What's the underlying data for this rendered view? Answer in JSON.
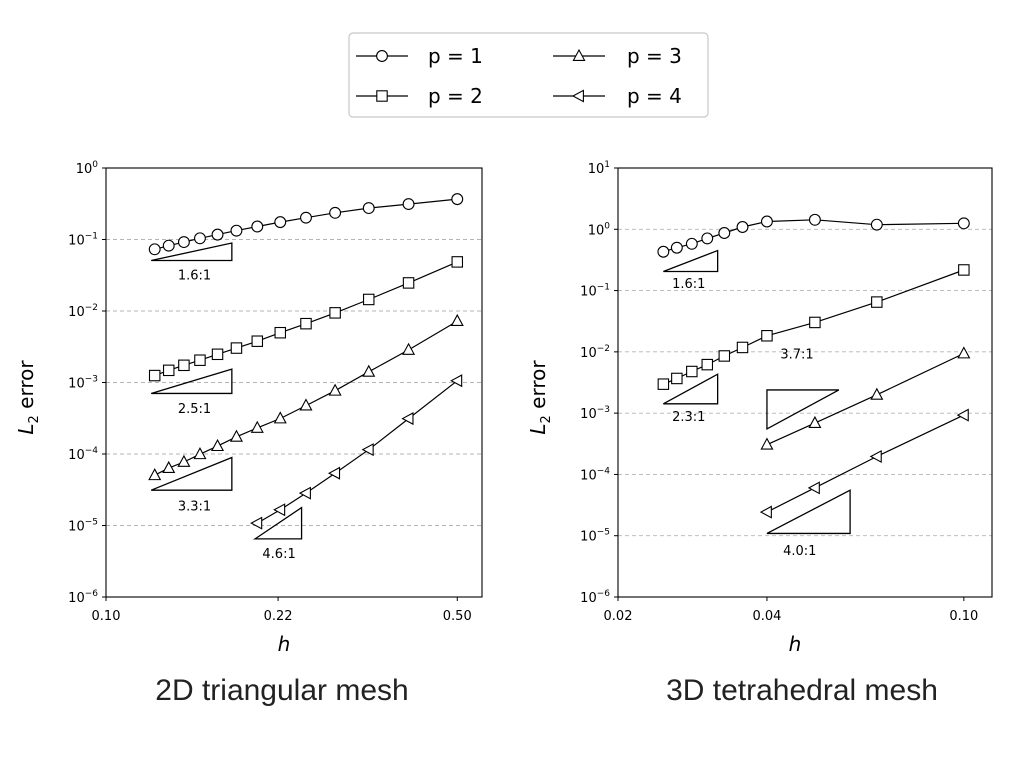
{
  "legend": {
    "entries": [
      {
        "label": "p = 1",
        "marker": "circle"
      },
      {
        "label": "p = 2",
        "marker": "square"
      },
      {
        "label": "p = 3",
        "marker": "triangle-up"
      },
      {
        "label": "p = 4",
        "marker": "triangle-left"
      }
    ]
  },
  "captions": [
    "2D triangular mesh",
    "3D tetrahedral mesh"
  ],
  "chart_data": [
    {
      "type": "line",
      "title": "2D triangular mesh",
      "xlabel": "h",
      "ylabel_main": "L",
      "ylabel_sub": "2",
      "ylabel_rest": " error",
      "xscale": "log",
      "yscale": "log",
      "xlim": [
        0.1,
        0.56
      ],
      "ylim_exp": [
        -6,
        0
      ],
      "xticks": [
        0.1,
        0.22,
        0.5
      ],
      "xtick_labels": [
        "0.10",
        "0.22",
        "0.50"
      ],
      "ytick_exps": [
        -6,
        -5,
        -4,
        -3,
        -2,
        -1,
        0
      ],
      "ytick_base": "10",
      "ytick_exp_labels": [
        "−6",
        "−5",
        "−4",
        "−3",
        "−2",
        "−1",
        "0"
      ],
      "grid": "horizontal dashed",
      "series": [
        {
          "name": "p = 1",
          "marker": "circle",
          "x": [
            0.125,
            0.1333,
            0.1429,
            0.1538,
            0.1667,
            0.1818,
            0.2,
            0.2222,
            0.25,
            0.2857,
            0.3333,
            0.4,
            0.5
          ],
          "y": [
            0.073,
            0.082,
            0.092,
            0.104,
            0.117,
            0.133,
            0.152,
            0.175,
            0.202,
            0.236,
            0.275,
            0.313,
            0.367
          ]
        },
        {
          "name": "p = 2",
          "marker": "square",
          "x": [
            0.125,
            0.1333,
            0.1429,
            0.1538,
            0.1667,
            0.1818,
            0.2,
            0.2222,
            0.25,
            0.2857,
            0.3333,
            0.4,
            0.5
          ],
          "y": [
            0.00125,
            0.00148,
            0.00174,
            0.00205,
            0.00248,
            0.00303,
            0.00378,
            0.00497,
            0.00665,
            0.00942,
            0.0145,
            0.0247,
            0.0486
          ]
        },
        {
          "name": "p = 3",
          "marker": "triangle-up",
          "x": [
            0.125,
            0.1333,
            0.1429,
            0.1538,
            0.1667,
            0.1818,
            0.2,
            0.2222,
            0.25,
            0.2857,
            0.3333,
            0.4,
            0.5
          ],
          "y": [
            5.05e-05,
            6.36e-05,
            7.74e-05,
            9.93e-05,
            0.000129,
            0.000174,
            0.000232,
            0.000314,
            0.000476,
            0.000767,
            0.00141,
            0.00286,
            0.00723
          ]
        },
        {
          "name": "p = 4",
          "marker": "triangle-left",
          "x": [
            0.2,
            0.2222,
            0.25,
            0.2857,
            0.3333,
            0.4,
            0.5
          ],
          "y": [
            1.08e-05,
            1.66e-05,
            2.84e-05,
            5.39e-05,
            0.000115,
            0.000313,
            0.00106
          ]
        }
      ],
      "slopes": [
        {
          "label": "1.6:1",
          "x0": 0.123,
          "x1": 0.178,
          "y0": 0.0508,
          "y1": 0.0893,
          "label_x": 0.15,
          "label_y": 0.0275
        },
        {
          "label": "2.5:1",
          "x0": 0.123,
          "x1": 0.178,
          "y0": 0.000703,
          "y1": 0.00154,
          "label_x": 0.15,
          "label_y": 0.000377
        },
        {
          "label": "3.3:1",
          "x0": 0.123,
          "x1": 0.178,
          "y0": 3.12e-05,
          "y1": 8.93e-05,
          "label_x": 0.15,
          "label_y": 1.63e-05
        },
        {
          "label": "4.6:1",
          "x0": 0.198,
          "x1": 0.245,
          "y0": 6.5e-06,
          "y1": 1.78e-05,
          "label_x": 0.221,
          "label_y": 3.5e-06
        }
      ]
    },
    {
      "type": "line",
      "title": "3D tetrahedral mesh",
      "xlabel": "h",
      "ylabel_main": "L",
      "ylabel_sub": "2",
      "ylabel_rest": " error",
      "xscale": "log",
      "yscale": "log",
      "xlim": [
        0.02,
        0.114
      ],
      "ylim_exp": [
        -6,
        1
      ],
      "xticks": [
        0.02,
        0.04,
        0.1
      ],
      "xtick_labels": [
        "0.02",
        "0.04",
        "0.10"
      ],
      "ytick_exps": [
        -6,
        -5,
        -4,
        -3,
        -2,
        -1,
        0,
        1
      ],
      "ytick_base": "10",
      "ytick_exp_labels": [
        "−6",
        "−5",
        "−4",
        "−3",
        "−2",
        "−1",
        "0",
        "1"
      ],
      "grid": "horizontal dashed",
      "series": [
        {
          "name": "p = 1",
          "marker": "circle",
          "x": [
            0.0247,
            0.0263,
            0.0282,
            0.0303,
            0.0328,
            0.0357,
            0.04,
            0.05,
            0.0667,
            0.1
          ],
          "y": [
            0.43,
            0.5,
            0.58,
            0.71,
            0.87,
            1.09,
            1.34,
            1.43,
            1.19,
            1.25
          ]
        },
        {
          "name": "p = 2",
          "marker": "square",
          "x": [
            0.0247,
            0.0263,
            0.0282,
            0.0303,
            0.0328,
            0.0357,
            0.04,
            0.05,
            0.0667,
            0.1
          ],
          "y": [
            0.00297,
            0.00368,
            0.00478,
            0.00619,
            0.00857,
            0.0118,
            0.0183,
            0.0302,
            0.0649,
            0.217
          ]
        },
        {
          "name": "p = 3",
          "marker": "triangle-up",
          "x": [
            0.04,
            0.05,
            0.0667,
            0.1
          ],
          "y": [
            0.000306,
            0.000689,
            0.00199,
            0.00941
          ]
        },
        {
          "name": "p = 4",
          "marker": "triangle-left",
          "x": [
            0.04,
            0.05,
            0.0667,
            0.1
          ],
          "y": [
            2.43e-05,
            6.04e-05,
            0.000196,
            0.00093
          ]
        }
      ],
      "slopes": [
        {
          "label": "1.6:1",
          "x0": 0.0247,
          "x1": 0.0318,
          "y0": 0.205,
          "y1": 0.45,
          "label_x": 0.0278,
          "label_y": 0.11
        },
        {
          "label": "2.3:1",
          "x0": 0.0247,
          "x1": 0.0318,
          "y0": 0.00142,
          "y1": 0.00432,
          "label_x": 0.0278,
          "label_y": 0.00075
        },
        {
          "label": "3.7:1",
          "x0": 0.04,
          "x1": 0.0559,
          "y0": 0.000552,
          "y1": 0.00239,
          "label_x": 0.046,
          "label_y": 0.0078,
          "hypotenuse": "top"
        },
        {
          "label": "4.0:1",
          "x0": 0.04,
          "x1": 0.0589,
          "y0": 1.09e-05,
          "y1": 5.53e-05,
          "label_x": 0.0466,
          "label_y": 4.8e-06
        }
      ]
    }
  ]
}
